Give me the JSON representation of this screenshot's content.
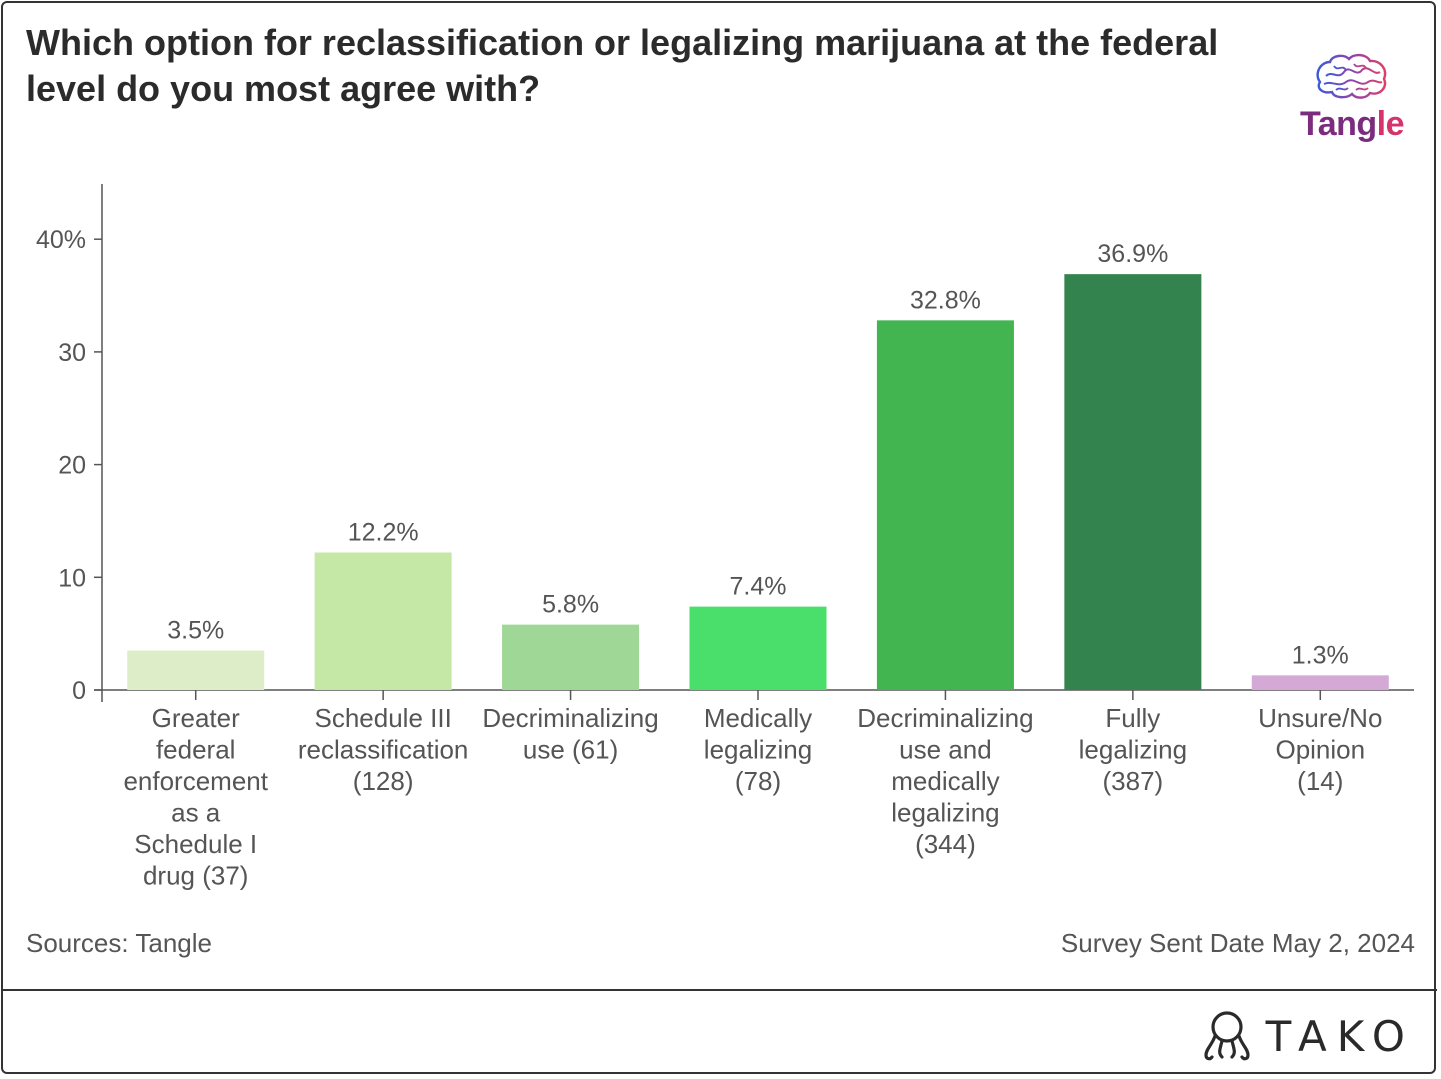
{
  "header": {
    "title": "Which option for reclassification or legalizing marijuana at the federal level do you most agree with?",
    "logo_text_first": "Tang",
    "logo_text_rest": "le"
  },
  "footer": {
    "source": "Sources: Tangle",
    "survey_date": "Survey Sent Date May 2, 2024",
    "brand": "TAKO"
  },
  "colors": {
    "tangle_purple": "#7b2c7e",
    "tangle_pink": "#d6336c"
  },
  "chart_data": {
    "type": "bar",
    "title": "Which option for reclassification or legalizing marijuana at the federal level do you most agree with?",
    "categories": [
      [
        "Greater",
        "federal",
        "enforcement",
        "as a",
        "Schedule I",
        "drug (37)"
      ],
      [
        "Schedule III",
        "reclassification",
        "(128)"
      ],
      [
        "Decriminalizing",
        "use (61)"
      ],
      [
        "Medically",
        "legalizing",
        "(78)"
      ],
      [
        "Decriminalizing",
        "use and",
        "medically",
        "legalizing",
        "(344)"
      ],
      [
        "Fully",
        "legalizing",
        "(387)"
      ],
      [
        "Unsure/No",
        "Opinion",
        "(14)"
      ]
    ],
    "values": [
      3.5,
      12.2,
      5.8,
      7.4,
      32.8,
      36.9,
      1.3
    ],
    "value_labels": [
      "3.5%",
      "12.2%",
      "5.8%",
      "7.4%",
      "32.8%",
      "36.9%",
      "1.3%"
    ],
    "colors": [
      "#dcedc8",
      "#c5e8a7",
      "#9fd896",
      "#4ade6a",
      "#42b551",
      "#32834d",
      "#d4a9d6"
    ],
    "yticks": [
      0,
      10,
      20,
      30,
      40
    ],
    "ytick_labels": [
      "0",
      "10",
      "20",
      "30",
      "40%"
    ],
    "ylim": [
      0,
      45
    ],
    "xlabel": "",
    "ylabel": "",
    "grid": false,
    "legend": "none"
  }
}
